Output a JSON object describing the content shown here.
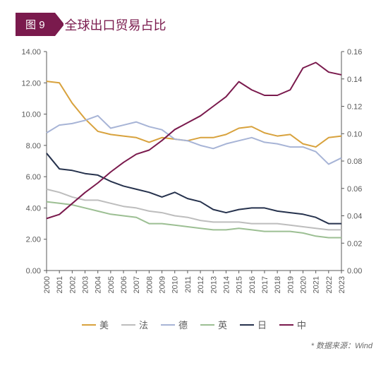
{
  "header": {
    "badge_prefix": "图",
    "badge_num": "9",
    "title": "全球出口贸易占比"
  },
  "source": "* 数据来源：Wind",
  "chart": {
    "type": "line",
    "background_color": "#ffffff",
    "axis_color": "#595959",
    "tick_fontsize": 11,
    "years": [
      "2000",
      "2001",
      "2002",
      "2003",
      "2004",
      "2005",
      "2006",
      "2007",
      "2008",
      "2009",
      "2010",
      "2011",
      "2012",
      "2013",
      "2014",
      "2015",
      "2016",
      "2017",
      "2018",
      "2019",
      "2020",
      "2021",
      "2022",
      "2023"
    ],
    "left_axis": {
      "min": 0.0,
      "max": 14.0,
      "step": 2.0
    },
    "right_axis": {
      "min": 0.0,
      "max": 0.16,
      "step": 0.02
    },
    "line_width": 2,
    "series": [
      {
        "key": "us",
        "label": "美",
        "color": "#d8a23d",
        "axis": "left",
        "data": [
          12.1,
          12.0,
          10.7,
          9.7,
          8.9,
          8.7,
          8.6,
          8.5,
          8.2,
          8.5,
          8.4,
          8.3,
          8.5,
          8.5,
          8.7,
          9.1,
          9.2,
          8.8,
          8.6,
          8.7,
          8.1,
          7.9,
          8.5,
          8.6
        ]
      },
      {
        "key": "fr",
        "label": "法",
        "color": "#bdbdbd",
        "axis": "left",
        "data": [
          5.2,
          5.0,
          4.7,
          4.5,
          4.5,
          4.3,
          4.1,
          4.0,
          3.8,
          3.7,
          3.5,
          3.4,
          3.2,
          3.1,
          3.1,
          3.1,
          3.0,
          3.0,
          3.0,
          2.9,
          2.8,
          2.7,
          2.6,
          2.6
        ]
      },
      {
        "key": "de",
        "label": "德",
        "color": "#a7b4d6",
        "axis": "left",
        "data": [
          8.8,
          9.3,
          9.4,
          9.6,
          9.9,
          9.1,
          9.3,
          9.5,
          9.2,
          9.0,
          8.4,
          8.3,
          8.0,
          7.8,
          8.1,
          8.3,
          8.5,
          8.2,
          8.1,
          7.9,
          7.9,
          7.6,
          6.8,
          7.2
        ]
      },
      {
        "key": "uk",
        "label": "英",
        "color": "#9cbf93",
        "axis": "left",
        "data": [
          4.4,
          4.3,
          4.2,
          4.0,
          3.8,
          3.6,
          3.5,
          3.4,
          3.0,
          3.0,
          2.9,
          2.8,
          2.7,
          2.6,
          2.6,
          2.7,
          2.6,
          2.5,
          2.5,
          2.5,
          2.4,
          2.2,
          2.1,
          2.1
        ]
      },
      {
        "key": "jp",
        "label": "日",
        "color": "#26324d",
        "axis": "left",
        "data": [
          7.5,
          6.5,
          6.4,
          6.2,
          6.1,
          5.7,
          5.4,
          5.2,
          5.0,
          4.7,
          5.0,
          4.6,
          4.4,
          3.9,
          3.7,
          3.9,
          4.0,
          4.0,
          3.8,
          3.7,
          3.6,
          3.4,
          3.0,
          3.0
        ]
      },
      {
        "key": "cn",
        "label": "中",
        "color": "#7a1a4d",
        "axis": "right",
        "data": [
          0.038,
          0.041,
          0.049,
          0.057,
          0.064,
          0.072,
          0.079,
          0.085,
          0.088,
          0.095,
          0.103,
          0.108,
          0.113,
          0.12,
          0.127,
          0.138,
          0.132,
          0.128,
          0.128,
          0.132,
          0.148,
          0.152,
          0.145,
          0.143
        ]
      }
    ]
  }
}
